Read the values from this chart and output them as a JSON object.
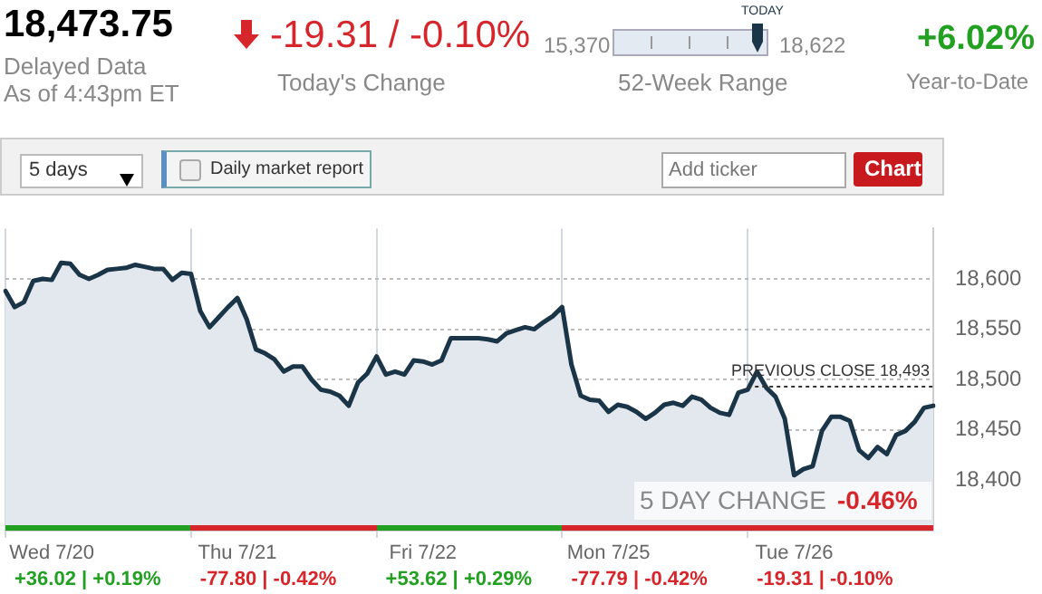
{
  "chart_data": {
    "type": "area",
    "title": "18,473.75",
    "annotations": [
      "Delayed Data",
      "As of 4:43pm ET",
      "-19.31 / -0.10%",
      "Today's Change",
      "15,370",
      "18,622",
      "TODAY",
      "52-Week Range",
      "+6.02%",
      "Year-to-Date",
      "5 days",
      "Daily market report",
      "Add ticker",
      "Chart",
      "5 DAY CHANGE",
      "-0.46%",
      "+36.02 | +0.19%",
      "-77.80 | -0.42%",
      "+53.62 | +0.29%",
      "-77.79 | -0.42%",
      "-19.31 | -0.10%"
    ],
    "categories": [
      null,
      null,
      null,
      null,
      null,
      "Wed 7/20",
      null,
      null,
      null,
      null,
      null,
      null,
      null,
      null,
      null,
      null,
      null,
      null,
      null,
      null,
      null,
      null,
      null,
      null,
      null,
      "Thu 7/21",
      null,
      null,
      null,
      null,
      null,
      null,
      null,
      null,
      null,
      null,
      null,
      null,
      null,
      null,
      null,
      null,
      null,
      null,
      null,
      "Fri 7/22",
      null,
      null,
      null,
      null,
      null,
      null,
      null,
      null,
      null,
      null,
      null,
      null,
      null,
      null,
      null,
      null,
      null,
      null,
      null,
      "Mon 7/25",
      null,
      null,
      null,
      null,
      null,
      null,
      null,
      null,
      null,
      null,
      null,
      null,
      null,
      null,
      null,
      null,
      null,
      null,
      null,
      "Tue 7/26",
      null,
      null,
      null,
      null,
      null,
      null,
      null,
      null,
      null,
      null,
      null,
      null,
      null,
      null,
      null
    ],
    "series": [
      {
        "color": "#1b3548",
        "values": [
          18588,
          18572,
          18577,
          18598,
          18600,
          18599,
          18616,
          18615,
          18604,
          18600,
          18604,
          18609,
          18610,
          18611,
          18614,
          18612,
          18610,
          18610,
          18599,
          18606,
          18605,
          18568,
          18552,
          18562,
          18572,
          18581,
          18560,
          18530,
          18526,
          18520,
          18508,
          18513,
          18513,
          18500,
          18490,
          18488,
          18484,
          18474,
          18497,
          18506,
          18523,
          18505,
          18508,
          18505,
          18519,
          18518,
          18515,
          18519,
          18541,
          18541,
          18541,
          18541,
          18540,
          18538,
          18546,
          18549,
          18552,
          18550,
          18557,
          18563,
          18572,
          18515,
          18484,
          18480,
          18479,
          18468,
          18475,
          18473,
          18468,
          18461,
          18467,
          18475,
          18477,
          18474,
          18483,
          18480,
          18472,
          18467,
          18465,
          18487,
          18490,
          18508,
          18492,
          18483,
          18461,
          18405,
          18411,
          18414,
          18449,
          18463,
          18463,
          18459,
          18430,
          18422,
          18433,
          18426,
          18445,
          18449,
          18458,
          18472,
          18474
        ]
      }
    ],
    "ylim": [
      18350,
      18650
    ],
    "yticks": [
      {
        "value": 18400,
        "label": "18,400"
      },
      {
        "value": 18450,
        "label": "18,450"
      },
      {
        "value": 18500,
        "label": "18,500"
      },
      {
        "value": 18550,
        "label": "18,550"
      },
      {
        "value": 18600,
        "label": "18,600"
      }
    ],
    "ref_lines": [
      {
        "axis": "y",
        "value": 18493,
        "label": "PREVIOUS CLOSE 18,493",
        "line_style": "dotted",
        "color": "#333333"
      }
    ],
    "grid": true,
    "legend": false,
    "marker": "none",
    "line_style": "solid"
  }
}
